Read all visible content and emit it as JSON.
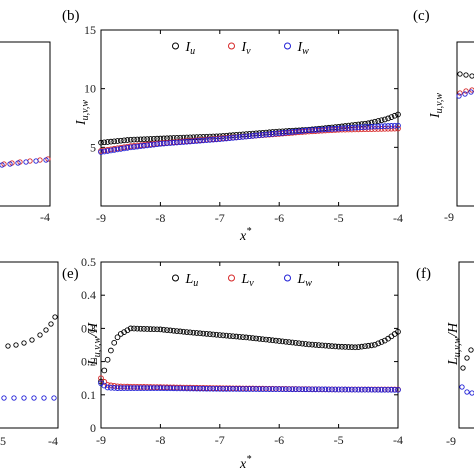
{
  "panels": [
    {
      "letter": "(b)"
    },
    {
      "letter": "(c)"
    },
    {
      "letter": "(e)"
    },
    {
      "letter": "(f)"
    }
  ],
  "chart_data": [
    {
      "panel": "(b)",
      "type": "scatter",
      "ylabel": "I_{u,v,w}",
      "xlabel": "x*",
      "xlim": [
        -9,
        -4
      ],
      "ylim": [
        0,
        15
      ],
      "xticks": [
        "-9",
        "-8",
        "-7",
        "-6",
        "-5",
        "-4"
      ],
      "yticks": [
        "5",
        "10",
        "15"
      ],
      "legend": {
        "placement": "top",
        "entries": [
          "I_u",
          "I_v",
          "I_w"
        ]
      },
      "grid": false,
      "series": [
        {
          "name": "I_u",
          "color": "#000000",
          "points": [
            [
              -9.0,
              5.4
            ],
            [
              -8.5,
              5.65
            ],
            [
              -8.0,
              5.75
            ],
            [
              -7.5,
              5.85
            ],
            [
              -7.0,
              5.95
            ],
            [
              -6.5,
              6.15
            ],
            [
              -6.0,
              6.35
            ],
            [
              -5.5,
              6.5
            ],
            [
              -5.0,
              6.75
            ],
            [
              -4.5,
              7.05
            ],
            [
              -4.2,
              7.4
            ],
            [
              -4.0,
              7.8
            ]
          ]
        },
        {
          "name": "I_v",
          "color": "#d62728",
          "points": [
            [
              -9.0,
              4.7
            ],
            [
              -8.5,
              5.1
            ],
            [
              -8.0,
              5.35
            ],
            [
              -7.5,
              5.55
            ],
            [
              -7.0,
              5.75
            ],
            [
              -6.5,
              5.95
            ],
            [
              -6.0,
              6.15
            ],
            [
              -5.5,
              6.35
            ],
            [
              -5.0,
              6.5
            ],
            [
              -4.5,
              6.55
            ],
            [
              -4.0,
              6.6
            ]
          ]
        },
        {
          "name": "I_w",
          "color": "#1f1fd6",
          "points": [
            [
              -9.0,
              4.6
            ],
            [
              -8.5,
              5.0
            ],
            [
              -8.0,
              5.3
            ],
            [
              -7.5,
              5.5
            ],
            [
              -7.0,
              5.7
            ],
            [
              -6.5,
              5.95
            ],
            [
              -6.0,
              6.2
            ],
            [
              -5.5,
              6.45
            ],
            [
              -5.0,
              6.6
            ],
            [
              -4.5,
              6.75
            ],
            [
              -4.0,
              6.85
            ]
          ]
        }
      ]
    },
    {
      "panel": "(e)",
      "type": "scatter",
      "ylabel": "L_{u,v,w}/H",
      "xlabel": "x*",
      "xlim": [
        -9,
        -4
      ],
      "ylim": [
        0,
        0.5
      ],
      "xticks": [
        "-9",
        "-8",
        "-7",
        "-6",
        "-5",
        "-4"
      ],
      "yticks": [
        "0",
        "0.1",
        "0.2",
        "0.3",
        "0.4",
        "0.5"
      ],
      "legend": {
        "placement": "top",
        "entries": [
          "L_u",
          "L_v",
          "L_w"
        ]
      },
      "grid": false,
      "series": [
        {
          "name": "L_u",
          "color": "#000000",
          "points": [
            [
              -9.0,
              0.14
            ],
            [
              -8.9,
              0.2
            ],
            [
              -8.8,
              0.25
            ],
            [
              -8.7,
              0.28
            ],
            [
              -8.5,
              0.3
            ],
            [
              -8.0,
              0.297
            ],
            [
              -7.5,
              0.288
            ],
            [
              -7.0,
              0.28
            ],
            [
              -6.5,
              0.272
            ],
            [
              -6.0,
              0.262
            ],
            [
              -5.5,
              0.252
            ],
            [
              -5.0,
              0.245
            ],
            [
              -4.7,
              0.243
            ],
            [
              -4.4,
              0.25
            ],
            [
              -4.2,
              0.265
            ],
            [
              -4.0,
              0.29
            ]
          ]
        },
        {
          "name": "L_v",
          "color": "#d62728",
          "points": [
            [
              -9.0,
              0.15
            ],
            [
              -8.9,
              0.13
            ],
            [
              -8.7,
              0.125
            ],
            [
              -8.0,
              0.123
            ],
            [
              -7.0,
              0.12
            ],
            [
              -6.0,
              0.118
            ],
            [
              -5.0,
              0.116
            ],
            [
              -4.0,
              0.116
            ]
          ]
        },
        {
          "name": "L_w",
          "color": "#1f1fd6",
          "points": [
            [
              -9.0,
              0.135
            ],
            [
              -8.9,
              0.122
            ],
            [
              -8.7,
              0.12
            ],
            [
              -8.0,
              0.12
            ],
            [
              -7.0,
              0.118
            ],
            [
              -6.0,
              0.117
            ],
            [
              -5.0,
              0.116
            ],
            [
              -4.0,
              0.115
            ]
          ]
        }
      ]
    }
  ]
}
